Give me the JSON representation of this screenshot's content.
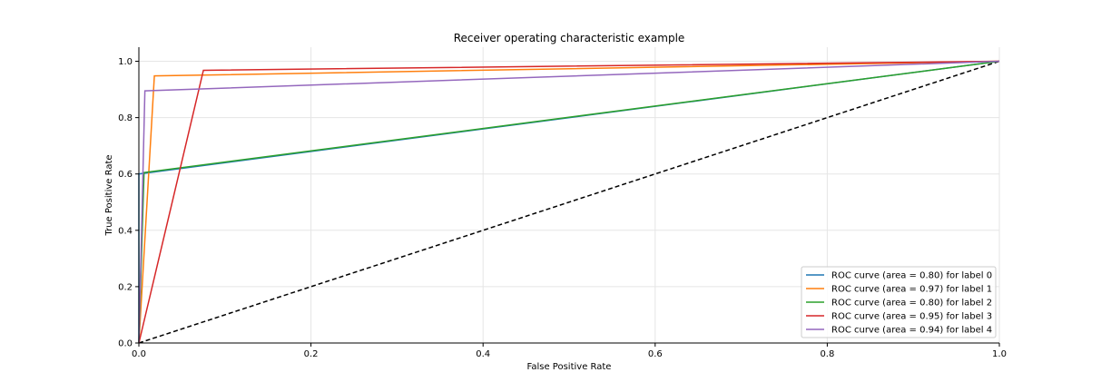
{
  "chart_data": {
    "type": "line",
    "title": "Receiver operating characteristic example",
    "xlabel": "False Positive Rate",
    "ylabel": "True Positive Rate",
    "xlim": [
      0,
      1.0
    ],
    "ylim": [
      0,
      1.05
    ],
    "xticks": [
      0,
      0.2,
      0.4,
      0.6,
      0.8,
      1.0
    ],
    "xtick_labels": [
      "0.0",
      "0.2",
      "0.4",
      "0.6",
      "0.8",
      "1.0"
    ],
    "yticks": [
      0,
      0.2,
      0.4,
      0.6,
      0.8,
      1.0
    ],
    "ytick_labels": [
      "0.0",
      "0.2",
      "0.4",
      "0.6",
      "0.8",
      "1.0"
    ],
    "grid": true,
    "legend_position": "lower-right",
    "series": [
      {
        "name": "ROC curve (area = 0.80) for label 0",
        "color": "#1f77b4",
        "x": [
          0,
          0.0,
          1.0
        ],
        "y": [
          0,
          0.6,
          1.0
        ]
      },
      {
        "name": "ROC curve (area = 0.97) for label 1",
        "color": "#ff7f0e",
        "x": [
          0,
          0.018,
          1.0
        ],
        "y": [
          0,
          0.948,
          1.0
        ]
      },
      {
        "name": "ROC curve (area = 0.80) for label 2",
        "color": "#2ca02c",
        "x": [
          0,
          0.006,
          1.0
        ],
        "y": [
          0,
          0.605,
          1.0
        ]
      },
      {
        "name": "ROC curve (area = 0.95) for label 3",
        "color": "#d62728",
        "x": [
          0,
          0.075,
          1.0
        ],
        "y": [
          0,
          0.968,
          1.0
        ]
      },
      {
        "name": "ROC curve (area = 0.94) for label 4",
        "color": "#9467bd",
        "x": [
          0,
          0.007,
          1.0
        ],
        "y": [
          0,
          0.895,
          1.0
        ]
      }
    ],
    "reference_line": {
      "color": "#000000",
      "style": "dashed",
      "x": [
        0,
        1
      ],
      "y": [
        0,
        1
      ]
    }
  }
}
